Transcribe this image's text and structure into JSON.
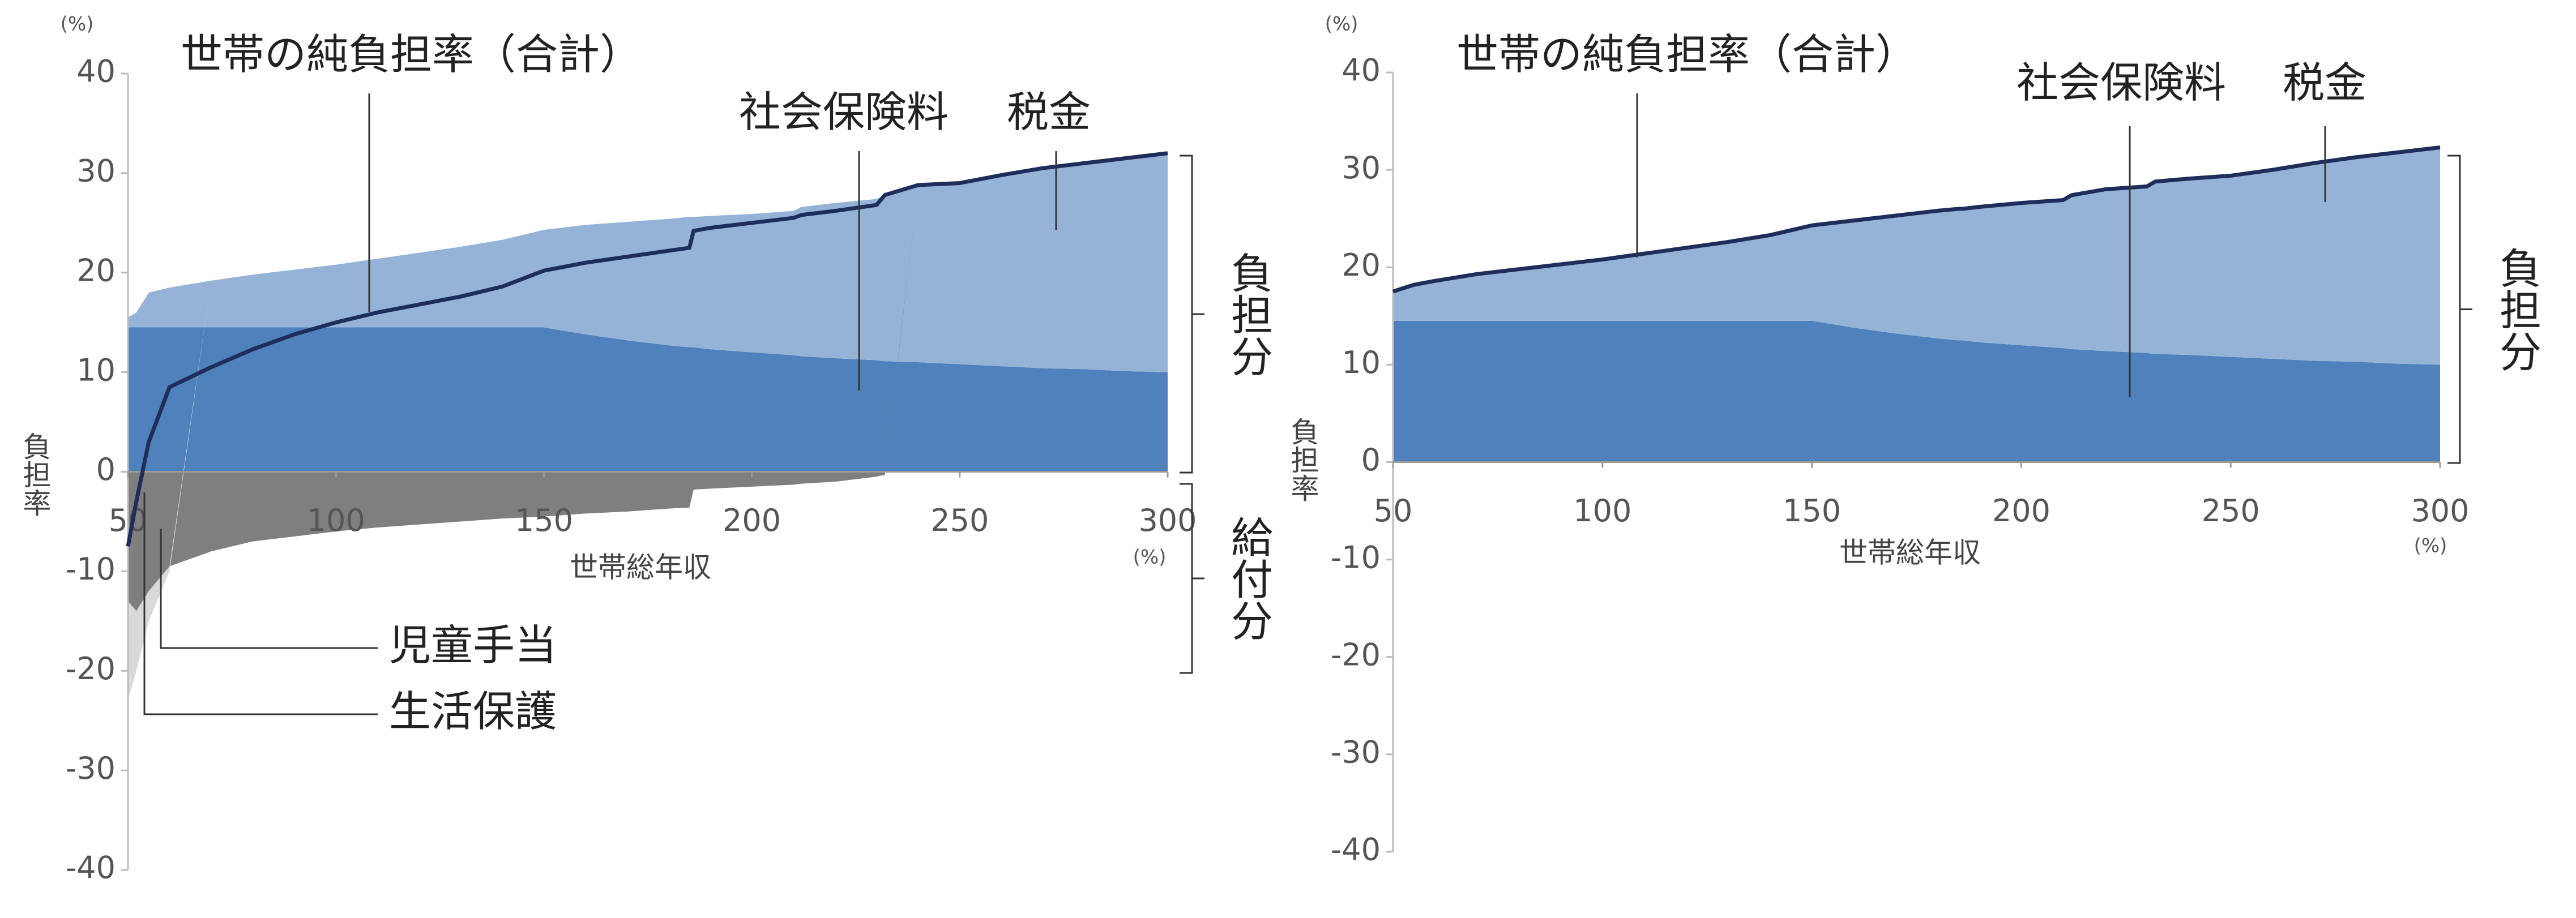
{
  "chart_data": [
    {
      "type": "area",
      "x_label": "世帯総年収",
      "x_unit": "(%)",
      "y_label": "負担率",
      "y_unit": "(%)",
      "x": [
        50,
        52,
        55,
        60,
        70,
        80,
        90,
        100,
        110,
        120,
        130,
        140,
        150,
        160,
        170,
        180,
        185,
        186,
        190,
        200,
        210,
        212,
        220,
        230,
        232,
        240,
        250,
        260,
        270,
        280,
        290,
        300
      ],
      "xlim": [
        50,
        300
      ],
      "xticks": [
        50,
        100,
        150,
        200,
        250,
        300
      ],
      "ylim": [
        -40,
        40
      ],
      "yticks": [
        -40,
        -30,
        -20,
        -10,
        0,
        10,
        20,
        30,
        40
      ],
      "brackets": [
        "負担分",
        "給付分"
      ],
      "series": [
        {
          "name": "社会保険料",
          "kind": "area",
          "color": "#4f81bd",
          "values": [
            14.5,
            14.5,
            14.5,
            14.5,
            14.5,
            14.5,
            14.5,
            14.5,
            14.5,
            14.5,
            14.5,
            14.5,
            14.5,
            13.8,
            13.2,
            12.7,
            12.5,
            12.5,
            12.3,
            12,
            11.7,
            11.6,
            11.4,
            11.2,
            11.1,
            11,
            10.8,
            10.6,
            10.4,
            10.3,
            10.1,
            10
          ]
        },
        {
          "name": "税金",
          "kind": "area",
          "color": "#95b3d7",
          "values": [
            1.0,
            1.5,
            3.5,
            4.0,
            4.7,
            5.3,
            5.8,
            6.3,
            6.9,
            7.5,
            8.1,
            8.8,
            9.8,
            11.0,
            11.9,
            12.7,
            13.1,
            13.1,
            13.4,
            13.9,
            14.5,
            15.0,
            15.6,
            16.2,
            16.7,
            17.8,
            18.2,
            19.2,
            20.1,
            20.7,
            21.4,
            22.0
          ]
        },
        {
          "name": "児童手当",
          "kind": "area",
          "color": "#7f7f7f",
          "values": [
            -13,
            -14,
            -12,
            -9.5,
            -8,
            -7,
            -6.5,
            -6,
            -5.6,
            -5.3,
            -5,
            -4.7,
            -4.5,
            -4.2,
            -4,
            -3.7,
            -3.6,
            -1.8,
            -1.7,
            -1.5,
            -1.3,
            -1.2,
            -1,
            -0.5,
            -0.3,
            0,
            0,
            0,
            0,
            0,
            0,
            0
          ]
        },
        {
          "name": "生活保護",
          "kind": "area",
          "color": "#d9d9d9",
          "values": [
            -10,
            -6,
            -3,
            -0.5,
            0,
            0,
            0,
            0,
            0,
            0,
            0,
            0,
            0,
            0,
            0,
            0,
            0,
            0,
            0,
            0,
            0,
            0,
            0,
            0,
            0,
            0,
            0,
            0,
            0,
            0,
            0,
            0
          ]
        },
        {
          "name": "世帯の純負担率（合計）",
          "kind": "line",
          "color": "#1f2d5a",
          "values": [
            -7.5,
            -3,
            3,
            8.5,
            10.5,
            12.3,
            13.8,
            15,
            16,
            16.8,
            17.6,
            18.6,
            20.2,
            21,
            21.6,
            22.2,
            22.5,
            24.2,
            24.5,
            25,
            25.5,
            25.8,
            26.2,
            26.8,
            27.8,
            28.8,
            29,
            29.8,
            30.5,
            31,
            31.5,
            32
          ]
        }
      ]
    },
    {
      "type": "area",
      "x_label": "世帯総年収",
      "x_unit": "(%)",
      "y_label": "負担率",
      "y_unit": "(%)",
      "x": [
        50,
        52,
        55,
        60,
        70,
        80,
        90,
        100,
        110,
        120,
        130,
        140,
        150,
        160,
        170,
        180,
        185,
        186,
        190,
        200,
        210,
        212,
        220,
        230,
        232,
        240,
        250,
        260,
        270,
        280,
        290,
        300
      ],
      "xlim": [
        50,
        300
      ],
      "xticks": [
        50,
        100,
        150,
        200,
        250,
        300
      ],
      "ylim": [
        -40,
        40
      ],
      "yticks": [
        -40,
        -30,
        -20,
        -10,
        0,
        10,
        20,
        30,
        40
      ],
      "brackets": [
        "負担分"
      ],
      "series": [
        {
          "name": "社会保険料",
          "kind": "area",
          "color": "#4f81bd",
          "values": [
            14.5,
            14.5,
            14.5,
            14.5,
            14.5,
            14.5,
            14.5,
            14.5,
            14.5,
            14.5,
            14.5,
            14.5,
            14.5,
            13.8,
            13.2,
            12.7,
            12.5,
            12.5,
            12.3,
            12,
            11.7,
            11.6,
            11.4,
            11.2,
            11.1,
            11,
            10.8,
            10.6,
            10.4,
            10.3,
            10.1,
            10
          ]
        },
        {
          "name": "税金",
          "kind": "area",
          "color": "#95b3d7",
          "values": [
            3.0,
            3.3,
            3.7,
            4.1,
            4.8,
            5.3,
            5.8,
            6.3,
            6.9,
            7.5,
            8.1,
            8.8,
            9.8,
            11.0,
            12.1,
            13.1,
            13.5,
            13.5,
            13.9,
            14.6,
            15.2,
            15.8,
            16.6,
            17.1,
            17.7,
            18.1,
            18.6,
            19.4,
            20.3,
            21.0,
            21.7,
            22.3
          ]
        },
        {
          "name": "世帯の純負担率（合計）",
          "kind": "line",
          "color": "#1f2d5a",
          "values": [
            17.5,
            17.8,
            18.2,
            18.6,
            19.3,
            19.8,
            20.3,
            20.8,
            21.4,
            22,
            22.6,
            23.3,
            24.3,
            24.8,
            25.3,
            25.8,
            26,
            26,
            26.2,
            26.6,
            26.9,
            27.4,
            28,
            28.3,
            28.8,
            29.1,
            29.4,
            30,
            30.7,
            31.3,
            31.8,
            32.3
          ]
        }
      ]
    }
  ]
}
